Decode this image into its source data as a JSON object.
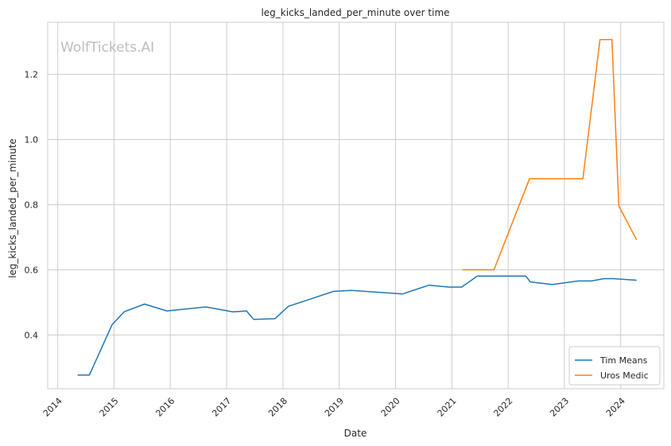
{
  "chart_data": {
    "type": "line",
    "title": "leg_kicks_landed_per_minute over time",
    "xlabel": "Date",
    "ylabel": "leg_kicks_landed_per_minute",
    "watermark": "WolfTickets.AI",
    "xlim": [
      "2013-10-28",
      "2024-10-07"
    ],
    "ylim": [
      0.235,
      1.36
    ],
    "x_ticks": [
      "2014",
      "2015",
      "2016",
      "2017",
      "2018",
      "2019",
      "2020",
      "2021",
      "2022",
      "2023",
      "2024"
    ],
    "y_ticks": [
      0.4,
      0.6,
      0.8,
      1.0,
      1.2
    ],
    "y_tick_labels": [
      "0.4",
      "0.6",
      "0.8",
      "1.0",
      "1.2"
    ],
    "grid": true,
    "legend_position": "bottom-right",
    "colors": {
      "grid": "#cccccc",
      "spine": "#cccccc"
    },
    "series": [
      {
        "name": "Tim Means",
        "color": "#1f77b4",
        "points": [
          [
            "2014-05-10",
            0.277
          ],
          [
            "2014-07-25",
            0.277
          ],
          [
            "2014-12-20",
            0.432
          ],
          [
            "2015-03-10",
            0.472
          ],
          [
            "2015-07-18",
            0.495
          ],
          [
            "2015-12-10",
            0.474
          ],
          [
            "2016-08-20",
            0.486
          ],
          [
            "2017-02-10",
            0.471
          ],
          [
            "2017-05-10",
            0.474
          ],
          [
            "2017-06-25",
            0.448
          ],
          [
            "2017-11-10",
            0.45
          ],
          [
            "2018-02-05",
            0.488
          ],
          [
            "2018-11-25",
            0.534
          ],
          [
            "2019-03-20",
            0.537
          ],
          [
            "2020-02-15",
            0.526
          ],
          [
            "2020-08-05",
            0.553
          ],
          [
            "2020-12-15",
            0.547
          ],
          [
            "2021-03-05",
            0.547
          ],
          [
            "2021-06-15",
            0.581
          ],
          [
            "2022-04-25",
            0.581
          ],
          [
            "2022-05-25",
            0.563
          ],
          [
            "2022-10-15",
            0.555
          ],
          [
            "2023-04-01",
            0.566
          ],
          [
            "2023-06-25",
            0.566
          ],
          [
            "2023-09-15",
            0.573
          ],
          [
            "2023-11-15",
            0.573
          ],
          [
            "2024-04-13",
            0.568
          ]
        ]
      },
      {
        "name": "Uros Medic",
        "color": "#ff7f0e",
        "points": [
          [
            "2021-03-10",
            0.6
          ],
          [
            "2021-10-01",
            0.6
          ],
          [
            "2022-05-20",
            0.88
          ],
          [
            "2023-05-01",
            0.88
          ],
          [
            "2023-08-20",
            1.307
          ],
          [
            "2023-11-05",
            1.307
          ],
          [
            "2023-12-20",
            0.796
          ],
          [
            "2024-04-13",
            0.692
          ]
        ]
      }
    ]
  }
}
